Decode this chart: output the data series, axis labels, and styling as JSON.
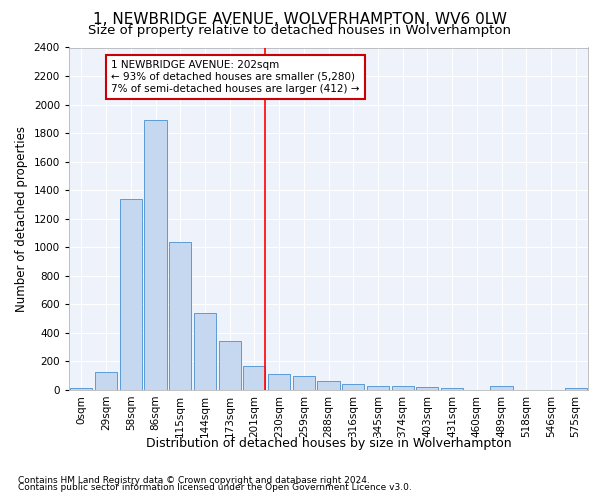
{
  "title1": "1, NEWBRIDGE AVENUE, WOLVERHAMPTON, WV6 0LW",
  "title2": "Size of property relative to detached houses in Wolverhampton",
  "xlabel": "Distribution of detached houses by size in Wolverhampton",
  "ylabel": "Number of detached properties",
  "categories": [
    "0sqm",
    "29sqm",
    "58sqm",
    "86sqm",
    "115sqm",
    "144sqm",
    "173sqm",
    "201sqm",
    "230sqm",
    "259sqm",
    "288sqm",
    "316sqm",
    "345sqm",
    "374sqm",
    "403sqm",
    "431sqm",
    "460sqm",
    "489sqm",
    "518sqm",
    "546sqm",
    "575sqm"
  ],
  "values": [
    15,
    125,
    1340,
    1890,
    1040,
    540,
    340,
    170,
    110,
    100,
    65,
    40,
    30,
    25,
    20,
    15,
    0,
    25,
    0,
    0,
    15
  ],
  "bar_color": "#c5d8ef",
  "bar_edge_color": "#5b9bd5",
  "red_line_index": 7,
  "annotation_text": "1 NEWBRIDGE AVENUE: 202sqm\n← 93% of detached houses are smaller (5,280)\n7% of semi-detached houses are larger (412) →",
  "annotation_box_color": "#ffffff",
  "annotation_box_edge_color": "#cc0000",
  "footer1": "Contains HM Land Registry data © Crown copyright and database right 2024.",
  "footer2": "Contains public sector information licensed under the Open Government Licence v3.0.",
  "ylim": [
    0,
    2400
  ],
  "background_color": "#eef2fb",
  "grid_color": "#ffffff",
  "title1_fontsize": 11,
  "title2_fontsize": 9.5,
  "ylabel_fontsize": 8.5,
  "xlabel_fontsize": 9,
  "tick_fontsize": 7.5,
  "footer_fontsize": 6.5
}
